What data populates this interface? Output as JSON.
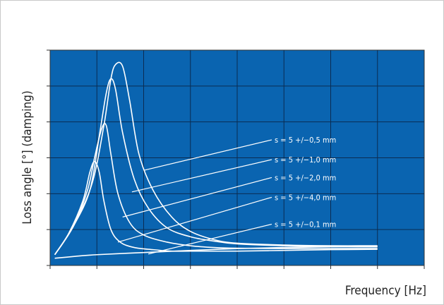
{
  "chart_data": {
    "type": "line",
    "title": "",
    "xlabel": "Frequency [Hz]",
    "ylabel": "Loss angle [°] (damping)",
    "grid": true,
    "colors": {
      "plot_background": "#0a64b0",
      "grid": "#0b2c52",
      "series": "#ffffff"
    },
    "xlim": [
      0,
      8
    ],
    "ylim": [
      0,
      6
    ],
    "tick_labels_shown": false,
    "series": [
      {
        "name": "s = 5 +/−0,5 mm",
        "x": [
          0.1,
          0.5,
          0.9,
          1.15,
          1.3,
          1.4,
          1.55,
          1.7,
          1.9,
          2.2,
          2.6,
          3.0,
          3.5,
          4.0,
          5.0,
          6.0,
          7.0
        ],
        "y": [
          0.3,
          1.1,
          2.3,
          3.9,
          5.2,
          5.6,
          5.55,
          4.6,
          3.1,
          2.1,
          1.35,
          0.95,
          0.72,
          0.62,
          0.57,
          0.55,
          0.55
        ]
      },
      {
        "name": "s = 5 +/−1,0 mm",
        "x": [
          0.1,
          0.5,
          0.85,
          1.05,
          1.2,
          1.3,
          1.4,
          1.55,
          1.8,
          2.1,
          2.5,
          3.0,
          3.5,
          4.0,
          5.0,
          6.0,
          7.0
        ],
        "y": [
          0.3,
          1.1,
          2.1,
          3.6,
          4.8,
          5.2,
          4.9,
          3.7,
          2.4,
          1.6,
          1.05,
          0.8,
          0.68,
          0.6,
          0.55,
          0.53,
          0.52
        ]
      },
      {
        "name": "s = 5 +/−2,0 mm",
        "x": [
          0.1,
          0.5,
          0.8,
          0.95,
          1.1,
          1.2,
          1.3,
          1.45,
          1.7,
          2.0,
          2.5,
          3.0,
          3.5,
          4.0,
          5.0,
          6.0,
          7.0
        ],
        "y": [
          0.3,
          1.1,
          2.1,
          3.0,
          3.8,
          3.9,
          3.1,
          2.0,
          1.2,
          0.85,
          0.65,
          0.55,
          0.5,
          0.48,
          0.47,
          0.47,
          0.47
        ]
      },
      {
        "name": "s = 5 +/−4,0 mm",
        "x": [
          0.1,
          0.4,
          0.7,
          0.85,
          0.95,
          1.05,
          1.15,
          1.3,
          1.5,
          1.8,
          2.2,
          2.6,
          3.0,
          4.0,
          5.0,
          6.0,
          7.0
        ],
        "y": [
          0.3,
          0.9,
          1.8,
          2.6,
          2.9,
          2.6,
          1.8,
          1.0,
          0.65,
          0.5,
          0.44,
          0.4,
          0.4,
          0.4,
          0.42,
          0.44,
          0.45
        ]
      },
      {
        "name": "s = 5 +/−0,1 mm",
        "x": [
          0.1,
          0.5,
          1.0,
          2.0,
          3.0,
          4.0,
          5.0,
          6.0,
          7.0
        ],
        "y": [
          0.2,
          0.25,
          0.3,
          0.36,
          0.42,
          0.47,
          0.5,
          0.52,
          0.52
        ]
      }
    ],
    "annotations": [
      {
        "text": "s = 5 +/−0,5 mm",
        "label_at": [
          4.8,
          3.5
        ],
        "points_to": [
          2.0,
          2.65
        ]
      },
      {
        "text": "s = 5 +/−1,0 mm",
        "label_at": [
          4.8,
          2.95
        ],
        "points_to": [
          1.75,
          2.05
        ]
      },
      {
        "text": "s = 5 +/−2,0 mm",
        "label_at": [
          4.8,
          2.45
        ],
        "points_to": [
          1.55,
          1.35
        ]
      },
      {
        "text": "s = 5 +/−4,0 mm",
        "label_at": [
          4.8,
          1.9
        ],
        "points_to": [
          1.45,
          0.65
        ]
      },
      {
        "text": "s = 5 +/−0,1 mm",
        "label_at": [
          4.8,
          1.15
        ],
        "points_to": [
          2.1,
          0.32
        ]
      }
    ]
  }
}
